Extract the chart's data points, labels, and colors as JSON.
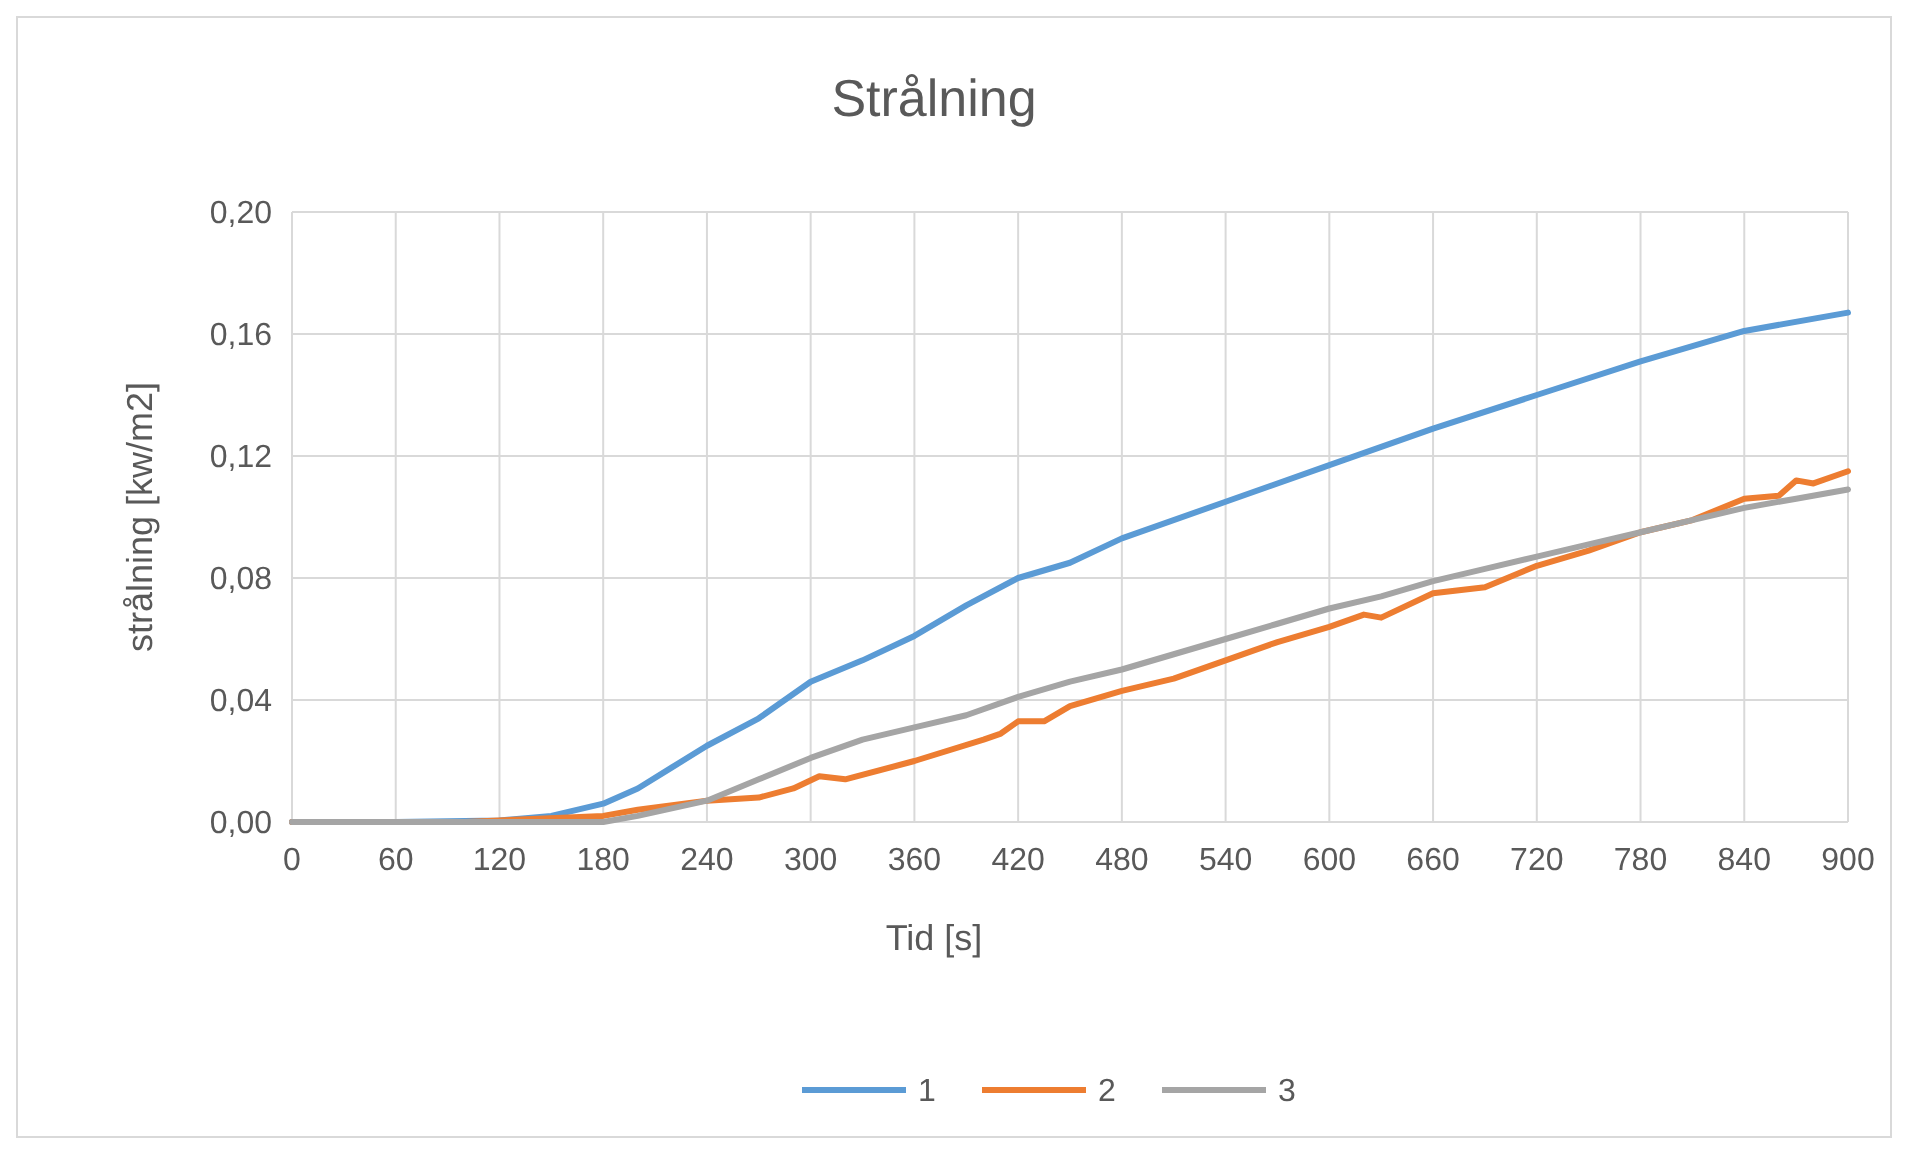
{
  "chart_data": {
    "type": "line",
    "title": "Strålning",
    "xlabel": "Tid [s]",
    "ylabel": "strålning [kw/m2]",
    "xlim": [
      0,
      900
    ],
    "xticks": [
      0,
      60,
      120,
      180,
      240,
      300,
      360,
      420,
      480,
      540,
      600,
      660,
      720,
      780,
      840,
      900
    ],
    "ylim": [
      0,
      0.2
    ],
    "yticks": [
      {
        "value": 0,
        "label": "0,00"
      },
      {
        "value": 0.04,
        "label": "0,04"
      },
      {
        "value": 0.08,
        "label": "0,08"
      },
      {
        "value": 0.12,
        "label": "0,12"
      },
      {
        "value": 0.16,
        "label": "0,16"
      },
      {
        "value": 0.2,
        "label": "0,20"
      }
    ],
    "grid": true,
    "legend": "bottom",
    "marker": "none",
    "line_style": "solid",
    "series": [
      {
        "name": "1",
        "color": "#5b9bd5",
        "x": [
          0,
          60,
          120,
          150,
          180,
          200,
          220,
          240,
          270,
          300,
          330,
          360,
          390,
          420,
          450,
          480,
          540,
          600,
          660,
          720,
          780,
          840,
          900
        ],
        "values": [
          0,
          0,
          0.0005,
          0.002,
          0.006,
          0.011,
          0.018,
          0.025,
          0.034,
          0.046,
          0.053,
          0.061,
          0.071,
          0.08,
          0.085,
          0.093,
          0.105,
          0.117,
          0.129,
          0.14,
          0.151,
          0.161,
          0.167
        ]
      },
      {
        "name": "2",
        "color": "#ed7d31",
        "x": [
          0,
          60,
          100,
          180,
          200,
          240,
          270,
          290,
          305,
          320,
          360,
          400,
          410,
          420,
          435,
          450,
          480,
          510,
          540,
          570,
          600,
          620,
          630,
          660,
          690,
          720,
          750,
          780,
          810,
          840,
          860,
          870,
          880,
          900
        ],
        "values": [
          0,
          0,
          0,
          0.002,
          0.004,
          0.007,
          0.008,
          0.011,
          0.015,
          0.014,
          0.02,
          0.027,
          0.029,
          0.033,
          0.033,
          0.038,
          0.043,
          0.047,
          0.053,
          0.059,
          0.064,
          0.068,
          0.067,
          0.075,
          0.077,
          0.084,
          0.089,
          0.095,
          0.099,
          0.106,
          0.107,
          0.112,
          0.111,
          0.115
        ]
      },
      {
        "name": "3",
        "color": "#a5a5a5",
        "x": [
          0,
          60,
          120,
          180,
          200,
          240,
          270,
          300,
          330,
          360,
          390,
          420,
          450,
          480,
          510,
          540,
          570,
          600,
          630,
          660,
          690,
          720,
          750,
          780,
          810,
          840,
          870,
          900
        ],
        "values": [
          0,
          0,
          0,
          0,
          0.002,
          0.007,
          0.014,
          0.021,
          0.027,
          0.031,
          0.035,
          0.041,
          0.046,
          0.05,
          0.055,
          0.06,
          0.065,
          0.07,
          0.074,
          0.079,
          0.083,
          0.087,
          0.091,
          0.095,
          0.099,
          0.103,
          0.106,
          0.109
        ]
      }
    ]
  }
}
